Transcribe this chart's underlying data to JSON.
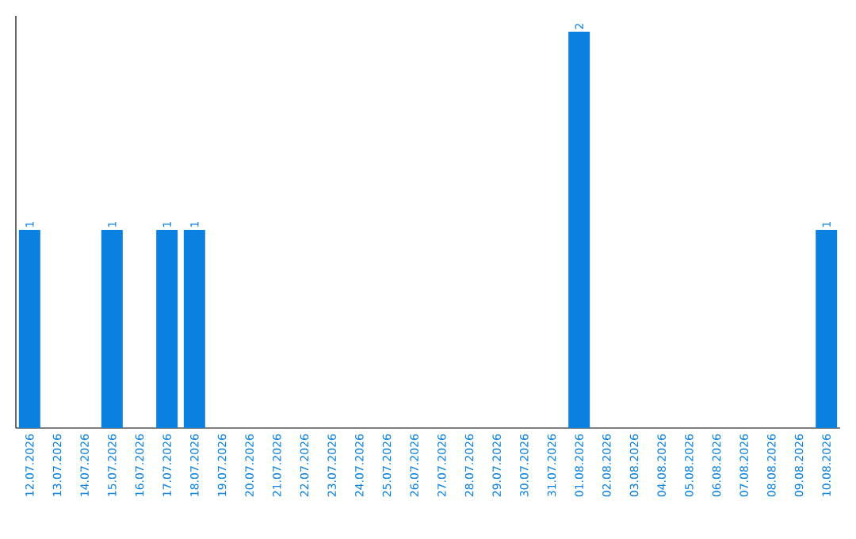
{
  "chart_data": {
    "type": "bar",
    "color": "#0a80e0",
    "categories": [
      "12.07.2026",
      "13.07.2026",
      "14.07.2026",
      "15.07.2026",
      "16.07.2026",
      "17.07.2026",
      "18.07.2026",
      "19.07.2026",
      "20.07.2026",
      "21.07.2026",
      "22.07.2026",
      "23.07.2026",
      "24.07.2026",
      "25.07.2026",
      "26.07.2026",
      "27.07.2026",
      "28.07.2026",
      "29.07.2026",
      "30.07.2026",
      "31.07.2026",
      "01.08.2026",
      "02.08.2026",
      "03.08.2026",
      "04.08.2026",
      "05.08.2026",
      "06.08.2026",
      "07.08.2026",
      "08.08.2026",
      "09.08.2026",
      "10.08.2026"
    ],
    "values": [
      1,
      0,
      0,
      1,
      0,
      1,
      1,
      0,
      0,
      0,
      0,
      0,
      0,
      0,
      0,
      0,
      0,
      0,
      0,
      0,
      2,
      0,
      0,
      0,
      0,
      0,
      0,
      0,
      0,
      1
    ],
    "value_labels": [
      "1",
      null,
      null,
      "1",
      null,
      "1",
      "1",
      null,
      null,
      null,
      null,
      null,
      null,
      null,
      null,
      null,
      null,
      null,
      null,
      null,
      "2",
      null,
      null,
      null,
      null,
      null,
      null,
      null,
      null,
      "1"
    ],
    "data_labels": false
  }
}
